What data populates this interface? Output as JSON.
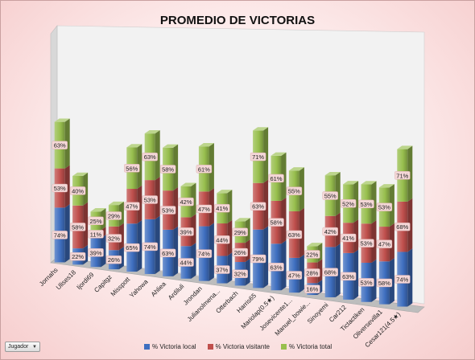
{
  "chart_data": {
    "type": "bar",
    "stacked": true,
    "style": "3d-column",
    "title": "PROMEDIO DE VICTORIAS",
    "xlabel": "",
    "ylabel": "",
    "grid": false,
    "legend_position": "bottom",
    "categories": [
      "Jornahs",
      "Ulises18",
      "Ijordi69",
      "Capitgz",
      "Misspott",
      "Yahowa",
      "Ahliea",
      "Ardiluli",
      "Jrondan",
      "Julianolmena...",
      "Otterbach",
      "Harris65",
      "Mariolap(0.5★)",
      "Josevicente1...",
      "Manuel_bowie...",
      "Sinoyemi",
      "Car212",
      "Tictactiken",
      "Oliversevilla1",
      "Cesar121(4.5★)"
    ],
    "series": [
      {
        "name": "% Victoria local",
        "color": "#3f6fc0",
        "values": [
          74,
          22,
          39,
          26,
          65,
          74,
          63,
          44,
          74,
          37,
          32,
          79,
          63,
          47,
          16,
          68,
          63,
          53,
          58,
          74
        ]
      },
      {
        "name": "% Victoria visitante",
        "color": "#c0504d",
        "values": [
          53,
          58,
          11,
          32,
          47,
          53,
          53,
          39,
          47,
          44,
          26,
          63,
          58,
          63,
          28,
          42,
          41,
          53,
          47,
          68
        ]
      },
      {
        "name": "% Victoria total",
        "color": "#98bf4e",
        "values": [
          63,
          40,
          25,
          29,
          56,
          63,
          58,
          42,
          61,
          41,
          29,
          71,
          61,
          55,
          22,
          55,
          52,
          53,
          53,
          71
        ]
      }
    ]
  },
  "field_button": {
    "label": "Jugador",
    "icon": "dropdown-arrow-icon"
  }
}
